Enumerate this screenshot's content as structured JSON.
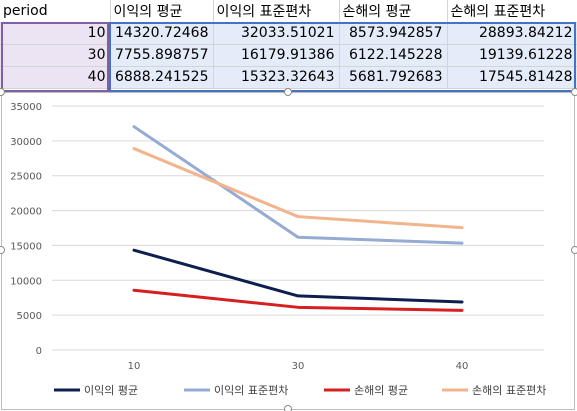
{
  "sheet": {
    "headers": [
      "period",
      "이익의 평균",
      "이익의 표준편차",
      "손해의 평균",
      "손해의 표준편차"
    ],
    "rows": [
      [
        "10",
        "14320.72468",
        "32033.51021",
        "8573.942857",
        "28893.84212"
      ],
      [
        "30",
        "7755.898757",
        "16179.91386",
        "6122.145228",
        "19139.61228"
      ],
      [
        "40",
        "6888.241525",
        "15323.32643",
        "5681.792683",
        "17545.81428"
      ]
    ]
  },
  "chart_data": {
    "type": "line",
    "title": "",
    "xlabel": "",
    "ylabel": "",
    "categories": [
      "10",
      "30",
      "40"
    ],
    "ylim": [
      0,
      35000
    ],
    "yticks": [
      "0",
      "5000",
      "10000",
      "15000",
      "20000",
      "25000",
      "30000",
      "35000"
    ],
    "grid": true,
    "legend_position": "bottom",
    "series": [
      {
        "name": "이익의 평균",
        "color": "#0d1f4e",
        "values": [
          14320.72468,
          7755.898757,
          6888.241525
        ]
      },
      {
        "name": "이익의 표준편차",
        "color": "#95abd4",
        "values": [
          32033.51021,
          16179.91386,
          15323.32643
        ]
      },
      {
        "name": "손해의 평균",
        "color": "#d62020",
        "values": [
          8573.942857,
          6122.145228,
          5681.792683
        ]
      },
      {
        "name": "손해의 표준편차",
        "color": "#f2b48c",
        "values": [
          28893.84212,
          19139.61228,
          17545.81428
        ]
      }
    ]
  }
}
